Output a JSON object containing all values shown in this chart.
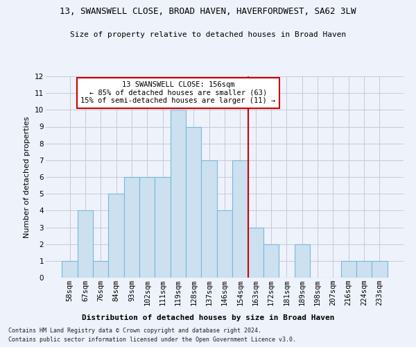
{
  "title": "13, SWANSWELL CLOSE, BROAD HAVEN, HAVERFORDWEST, SA62 3LW",
  "subtitle": "Size of property relative to detached houses in Broad Haven",
  "xlabel": "Distribution of detached houses by size in Broad Haven",
  "ylabel": "Number of detached properties",
  "footnote1": "Contains HM Land Registry data © Crown copyright and database right 2024.",
  "footnote2": "Contains public sector information licensed under the Open Government Licence v3.0.",
  "bins": [
    "58sqm",
    "67sqm",
    "76sqm",
    "84sqm",
    "93sqm",
    "102sqm",
    "111sqm",
    "119sqm",
    "128sqm",
    "137sqm",
    "146sqm",
    "154sqm",
    "163sqm",
    "172sqm",
    "181sqm",
    "189sqm",
    "198sqm",
    "207sqm",
    "216sqm",
    "224sqm",
    "233sqm"
  ],
  "values": [
    1,
    4,
    1,
    5,
    6,
    6,
    6,
    10,
    9,
    7,
    4,
    7,
    3,
    2,
    0,
    2,
    0,
    0,
    1,
    1,
    1
  ],
  "bar_color": "#cce0f0",
  "bar_edge_color": "#7ab8d9",
  "property_line_color": "#cc0000",
  "annotation_line1": "13 SWANSWELL CLOSE: 156sqm",
  "annotation_line2": "← 85% of detached houses are smaller (63)",
  "annotation_line3": "15% of semi-detached houses are larger (11) →",
  "annotation_box_color": "white",
  "annotation_box_edge_color": "#cc0000",
  "ylim": [
    0,
    12
  ],
  "yticks": [
    0,
    1,
    2,
    3,
    4,
    5,
    6,
    7,
    8,
    9,
    10,
    11,
    12
  ],
  "grid_color": "#c8c8d8",
  "bg_color": "#eef2fb",
  "title_fontsize": 9,
  "subtitle_fontsize": 8,
  "ylabel_fontsize": 8,
  "tick_fontsize": 7.5,
  "annot_fontsize": 7.5,
  "footnote_fontsize": 6.0
}
